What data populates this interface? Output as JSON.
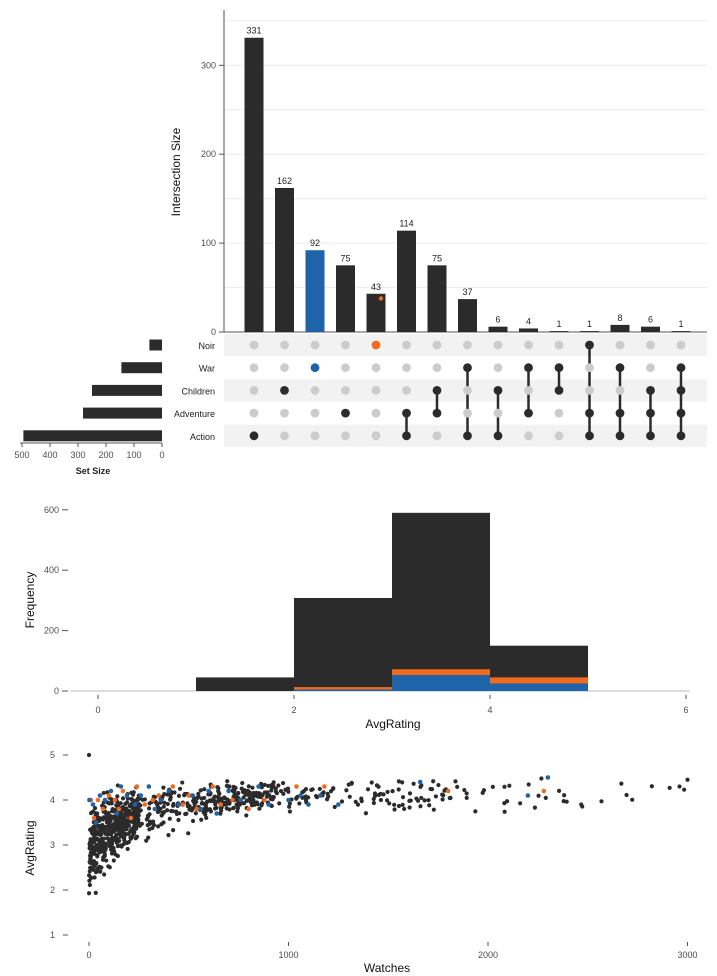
{
  "colors": {
    "bar": "#2b2b2b",
    "blue": "#1f63a8",
    "orange": "#f26b1d",
    "empty": "#cccccc",
    "stripe": "#f2f2f2",
    "grid": "#ececec"
  },
  "chart_data": [
    {
      "type": "bar",
      "title": "",
      "ylabel": "Intersection Size",
      "ylim": [
        0,
        350
      ],
      "yticks": [
        0,
        100,
        200,
        300
      ],
      "intersections": [
        {
          "value": 331,
          "sets": [
            "Action"
          ],
          "color": "default"
        },
        {
          "value": 162,
          "sets": [
            "Children"
          ],
          "color": "default"
        },
        {
          "value": 92,
          "sets": [
            "War"
          ],
          "color": "blue"
        },
        {
          "value": 75,
          "sets": [
            "Adventure"
          ],
          "color": "default"
        },
        {
          "value": 43,
          "sets": [
            "Noir"
          ],
          "color": "default",
          "dot_color": "orange"
        },
        {
          "value": 114,
          "sets": [
            "Adventure",
            "Action"
          ],
          "color": "default"
        },
        {
          "value": 75,
          "sets": [
            "Children",
            "Adventure"
          ],
          "color": "default"
        },
        {
          "value": 37,
          "sets": [
            "War",
            "Action"
          ],
          "color": "default"
        },
        {
          "value": 6,
          "sets": [
            "Children",
            "Action"
          ],
          "color": "default"
        },
        {
          "value": 4,
          "sets": [
            "War",
            "Adventure"
          ],
          "color": "default"
        },
        {
          "value": 1,
          "sets": [
            "War",
            "Children"
          ],
          "color": "default"
        },
        {
          "value": 1,
          "sets": [
            "Noir",
            "Adventure",
            "Action"
          ],
          "color": "default"
        },
        {
          "value": 8,
          "sets": [
            "War",
            "Adventure",
            "Action"
          ],
          "color": "default"
        },
        {
          "value": 6,
          "sets": [
            "Children",
            "Adventure",
            "Action"
          ],
          "color": "default"
        },
        {
          "value": 1,
          "sets": [
            "War",
            "Children",
            "Adventure",
            "Action"
          ],
          "color": "default"
        }
      ],
      "orange_marker": {
        "bar_index": 4,
        "value": 40
      }
    },
    {
      "type": "bar",
      "title": "Set Size",
      "xlabel": "Set Size",
      "xlim": [
        0,
        500
      ],
      "xticks": [
        "500",
        "400",
        "300",
        "200",
        "100",
        "0"
      ],
      "sets": [
        "Noir",
        "War",
        "Children",
        "Adventure",
        "Action"
      ],
      "values": [
        45,
        145,
        250,
        282,
        495
      ]
    },
    {
      "type": "bar",
      "subtype": "histogram",
      "xlabel": "AvgRating",
      "ylabel": "Frequency",
      "xlim": [
        -0.2,
        6
      ],
      "ylim": [
        0,
        610
      ],
      "xticks": [
        "0",
        "2",
        "4",
        "6"
      ],
      "yticks": [
        "0",
        "200",
        "400",
        "600"
      ],
      "bins": [
        {
          "x0": 1,
          "x1": 2,
          "total": 45,
          "orange": 0,
          "blue": 0
        },
        {
          "x0": 2,
          "x1": 3,
          "total": 308,
          "orange": 13,
          "blue": 5
        },
        {
          "x0": 3,
          "x1": 4,
          "total": 590,
          "orange": 72,
          "blue": 53
        },
        {
          "x0": 4,
          "x1": 5,
          "total": 150,
          "orange": 45,
          "blue": 25
        }
      ]
    },
    {
      "type": "scatter",
      "xlabel": "Watches",
      "ylabel": "AvgRating",
      "xlim": [
        -60,
        3050
      ],
      "ylim": [
        0.85,
        5.2
      ],
      "xticks": [
        "0",
        "1000",
        "2000",
        "3000"
      ],
      "yticks": [
        "1",
        "2",
        "3",
        "4",
        "5"
      ],
      "highlight_points": {
        "blue": [
          [
            2,
            4
          ],
          [
            20,
            3.9
          ],
          [
            35,
            3.5
          ],
          [
            55,
            4.1
          ],
          [
            80,
            4.0
          ],
          [
            110,
            4.2
          ],
          [
            140,
            3.7
          ],
          [
            160,
            4.3
          ],
          [
            190,
            4.1
          ],
          [
            230,
            3.9
          ],
          [
            260,
            4.1
          ],
          [
            300,
            4.3
          ],
          [
            330,
            3.8
          ],
          [
            360,
            4.0
          ],
          [
            400,
            4.2
          ],
          [
            450,
            3.9
          ],
          [
            520,
            4.1
          ],
          [
            560,
            3.8
          ],
          [
            600,
            4.2
          ],
          [
            640,
            3.7
          ],
          [
            700,
            4.2
          ],
          [
            760,
            4.0
          ],
          [
            850,
            4.3
          ],
          [
            900,
            3.9
          ],
          [
            1000,
            4.0
          ],
          [
            1060,
            4.1
          ],
          [
            1100,
            3.9
          ],
          [
            1160,
            4.1
          ],
          [
            1250,
            3.9
          ],
          [
            1660,
            4.4
          ],
          [
            2200,
            4.1
          ],
          [
            2300,
            4.5
          ]
        ],
        "orange": [
          [
            10,
            4.0
          ],
          [
            25,
            3.6
          ],
          [
            45,
            4.0
          ],
          [
            70,
            3.8
          ],
          [
            100,
            4.1
          ],
          [
            130,
            4.0
          ],
          [
            150,
            3.8
          ],
          [
            170,
            4.2
          ],
          [
            210,
            3.6
          ],
          [
            240,
            4.3
          ],
          [
            280,
            3.9
          ],
          [
            320,
            4.0
          ],
          [
            350,
            4.1
          ],
          [
            420,
            4.3
          ],
          [
            470,
            3.9
          ],
          [
            500,
            4.1
          ],
          [
            540,
            3.8
          ],
          [
            620,
            4.3
          ],
          [
            660,
            3.9
          ],
          [
            720,
            4.0
          ],
          [
            800,
            3.8
          ],
          [
            880,
            4.0
          ],
          [
            1040,
            4.3
          ],
          [
            1180,
            4.3
          ],
          [
            1800,
            4.2
          ],
          [
            2280,
            4.2
          ]
        ]
      },
      "black_points_count": 900
    }
  ]
}
